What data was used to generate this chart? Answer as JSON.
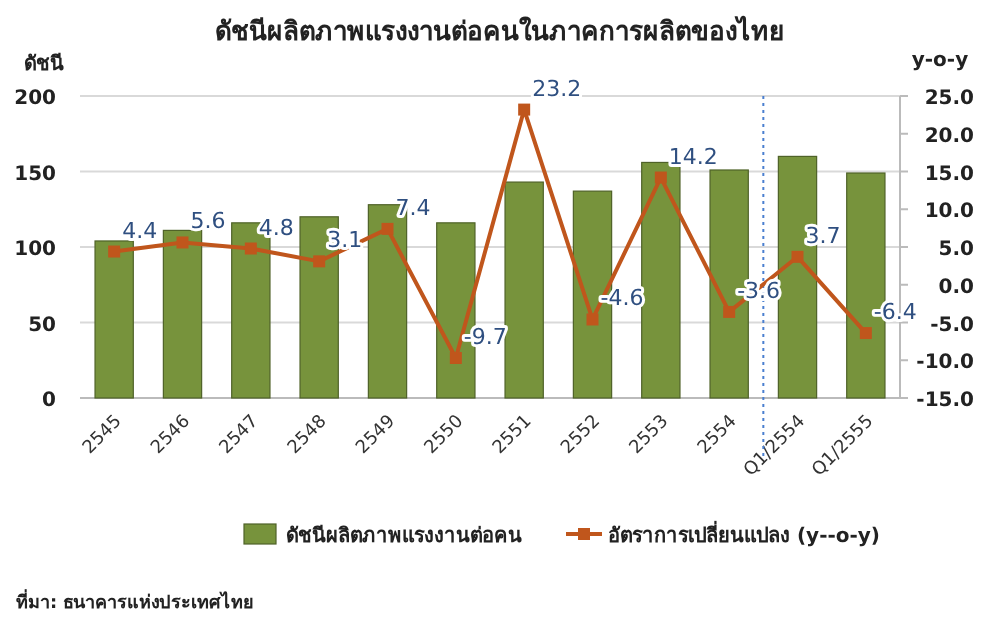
{
  "chart_data": {
    "type": "bar",
    "title": "ดัชนีผลิตภาพแรงงานต่อคนในภาคการผลิตของไทย",
    "ylabel": "ดัชนี",
    "y2label": "y-o-y",
    "categories": [
      "2545",
      "2546",
      "2547",
      "2548",
      "2549",
      "2550",
      "2551",
      "2552",
      "2553",
      "2554",
      "Q1/2554",
      "Q1/2555"
    ],
    "series": [
      {
        "name": "ดัชนีผลิตภาพแรงงานต่อคน",
        "color": "#77933c",
        "values": [
          104,
          111,
          116,
          120,
          128,
          116,
          143,
          137,
          156,
          151,
          160,
          149
        ]
      },
      {
        "name": "อัตราการเปลี่ยนแปลง (y--o-y)",
        "type": "line",
        "axis": "y2",
        "color": "#c0561c",
        "values": [
          4.4,
          5.6,
          4.8,
          3.1,
          7.4,
          -9.7,
          23.2,
          -4.6,
          14.2,
          -3.6,
          3.7,
          -6.4
        ],
        "value_labels": [
          "4.4",
          "5.6",
          "4.8",
          "3.1",
          "7.4",
          "-9.7",
          "23.2",
          "-4.6",
          "14.2",
          "-3.6",
          "3.7",
          "-6.4"
        ]
      }
    ],
    "ylim": [
      0,
      200
    ],
    "yticks": [
      0,
      50,
      100,
      150,
      200
    ],
    "y2lim": [
      -15,
      25
    ],
    "y2ticks": [
      {
        "value": -15,
        "label": "-15.0"
      },
      {
        "value": -10,
        "label": "-10.0"
      },
      {
        "value": -5,
        "label": "-5.0"
      },
      {
        "value": 0,
        "label": "0.0"
      },
      {
        "value": 5,
        "label": "5.0"
      },
      {
        "value": 10,
        "label": "10.0"
      },
      {
        "value": 15,
        "label": "15.0"
      },
      {
        "value": 20,
        "label": "20.0"
      },
      {
        "value": 25,
        "label": "25.0"
      }
    ],
    "grid": "y",
    "legend": "bottom",
    "marker": "square",
    "annotations": [
      "ที่มา: ธนาคารแห่งประเทศไทย"
    ]
  }
}
